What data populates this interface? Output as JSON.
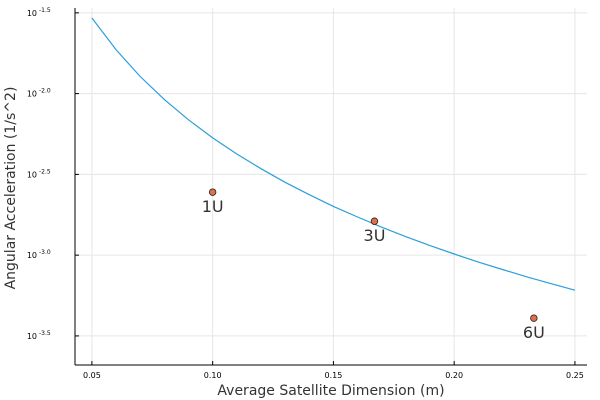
{
  "chart_data": {
    "type": "scatter",
    "title": "",
    "xlabel": "Average Satellite Dimension (m)",
    "ylabel": "Angular Acceleration (1/s^2)",
    "xlim": [
      0.043,
      0.255
    ],
    "ylim_log10": [
      -3.68,
      -1.47
    ],
    "yscale": "log10",
    "grid": true,
    "legend": "none",
    "x_ticks": [
      {
        "value": 0.05,
        "label": "0.05"
      },
      {
        "value": 0.1,
        "label": "0.10"
      },
      {
        "value": 0.15,
        "label": "0.15"
      },
      {
        "value": 0.2,
        "label": "0.20"
      },
      {
        "value": 0.25,
        "label": "0.25"
      }
    ],
    "y_ticks": [
      {
        "exp": -1.5,
        "base": "10",
        "label": "-1.5"
      },
      {
        "exp": -2.0,
        "base": "10",
        "label": "-2.0"
      },
      {
        "exp": -2.5,
        "base": "10",
        "label": "-2.5"
      },
      {
        "exp": -3.0,
        "base": "10",
        "label": "-3.0"
      },
      {
        "exp": -3.5,
        "base": "10",
        "label": "-3.5"
      }
    ],
    "series": [
      {
        "type": "line",
        "color": "#2a9fdb",
        "x": [
          0.05,
          0.06,
          0.07,
          0.08,
          0.09,
          0.1,
          0.11,
          0.12,
          0.13,
          0.14,
          0.15,
          0.16,
          0.17,
          0.18,
          0.19,
          0.2,
          0.21,
          0.22,
          0.23,
          0.24,
          0.25
        ],
        "y_log10": [
          -1.532,
          -1.729,
          -1.894,
          -2.037,
          -2.162,
          -2.274,
          -2.374,
          -2.465,
          -2.549,
          -2.626,
          -2.698,
          -2.764,
          -2.827,
          -2.886,
          -2.941,
          -2.993,
          -3.043,
          -3.089,
          -3.134,
          -3.176,
          -3.217
        ]
      },
      {
        "type": "scatter",
        "color": "#e26f46",
        "points": [
          {
            "x": 0.1,
            "y_log10": -2.61,
            "label": "1U"
          },
          {
            "x": 0.167,
            "y_log10": -2.79,
            "label": "3U"
          },
          {
            "x": 0.233,
            "y_log10": -3.39,
            "label": "6U"
          }
        ]
      }
    ]
  }
}
